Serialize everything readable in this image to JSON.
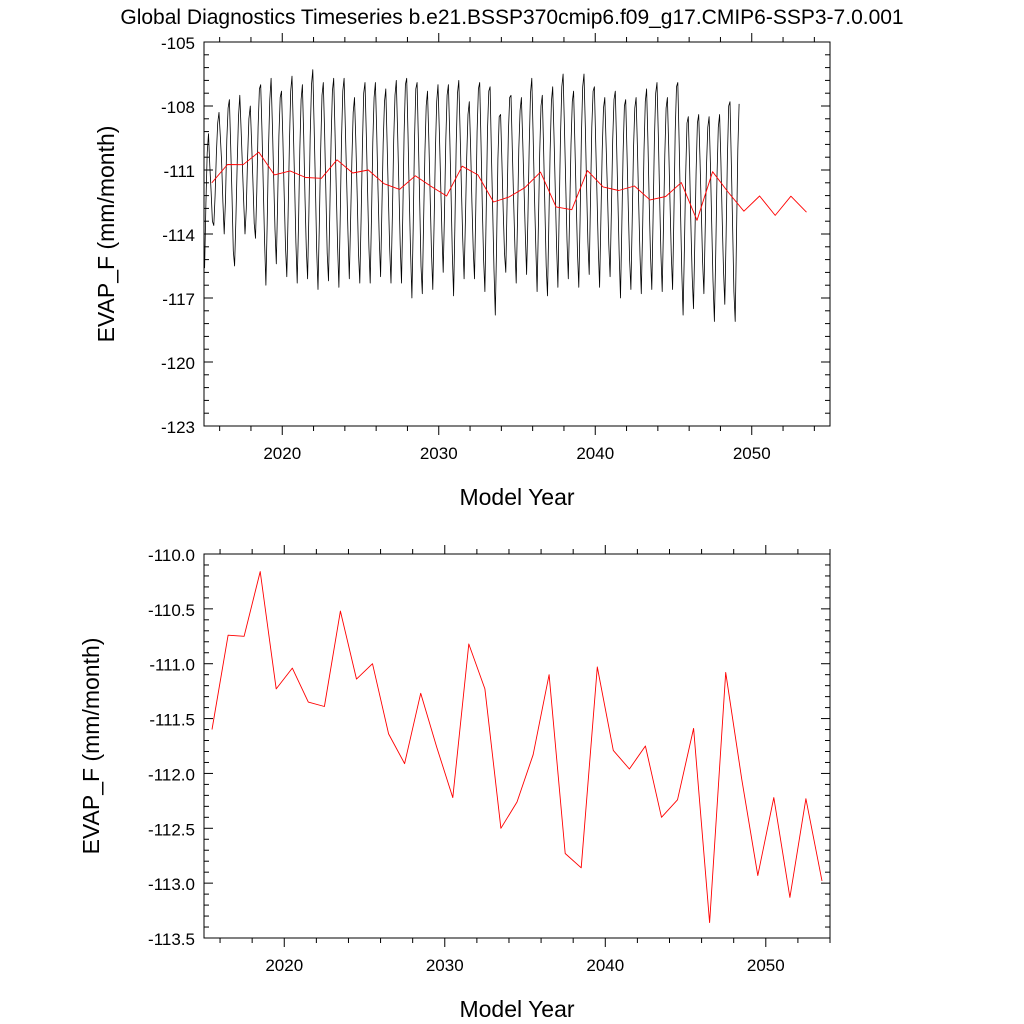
{
  "title": "Global Diagnostics Timeseries b.e21.BSSP370cmip6.f09_g17.CMIP6-SSP3-7.0.001",
  "colors": {
    "monthly": "#000000",
    "annual": "#ff0000",
    "frame": "#000000",
    "background": "#ffffff"
  },
  "chart_data": [
    {
      "type": "line",
      "xlabel": "Model Year",
      "ylabel": "EVAP_F (mm/month)",
      "xlim": [
        2015,
        2055
      ],
      "ylim": [
        -123,
        -105
      ],
      "x_ticks": [
        2020,
        2030,
        2040,
        2050
      ],
      "y_ticks": [
        -105,
        -108,
        -111,
        -114,
        -117,
        -120,
        -123
      ],
      "y_tick_labels": [
        "-105",
        "-108",
        "-111",
        "-114",
        "-117",
        "-120",
        "-123"
      ],
      "grid": false,
      "series": [
        {
          "color": "#000000",
          "x_start": 2015.04,
          "x_step": 0.0833,
          "values": [
            -115.6,
            -112.6,
            -110.2,
            -109.3,
            -110.8,
            -112.0,
            -113.4,
            -113.6,
            -112.2,
            -110.2,
            -108.8,
            -108.3,
            -109.4,
            -110.6,
            -112.5,
            -114.0,
            -112.4,
            -109.6,
            -108.1,
            -107.7,
            -109.9,
            -112.2,
            -114.8,
            -115.5,
            -113.3,
            -110.7,
            -108.5,
            -107.5,
            -109.1,
            -110.8,
            -112.5,
            -114.0,
            -112.8,
            -110.4,
            -108.6,
            -108.0,
            -109.7,
            -111.5,
            -113.5,
            -114.2,
            -112.0,
            -109.0,
            -107.2,
            -107.0,
            -109.2,
            -111.8,
            -114.4,
            -116.4,
            -113.5,
            -110.0,
            -107.7,
            -106.7,
            -108.9,
            -111.4,
            -113.8,
            -115.4,
            -112.6,
            -109.4,
            -107.6,
            -107.3,
            -109.4,
            -112.0,
            -114.6,
            -116.0,
            -113.1,
            -109.8,
            -107.3,
            -106.6,
            -109.0,
            -111.6,
            -114.4,
            -116.3,
            -113.6,
            -110.1,
            -107.7,
            -107.0,
            -109.4,
            -112.3,
            -114.7,
            -116.1,
            -113.0,
            -109.4,
            -107.0,
            -106.3,
            -108.9,
            -111.7,
            -114.8,
            -116.6,
            -113.6,
            -110.0,
            -107.5,
            -106.9,
            -109.2,
            -112.1,
            -114.9,
            -116.2,
            -113.0,
            -109.6,
            -107.3,
            -106.7,
            -109.2,
            -112.0,
            -114.6,
            -116.5,
            -113.3,
            -109.6,
            -107.3,
            -106.7,
            -109.1,
            -111.6,
            -114.0,
            -116.1,
            -113.4,
            -110.5,
            -108.3,
            -107.6,
            -109.6,
            -112.2,
            -114.9,
            -116.3,
            -113.3,
            -109.9,
            -107.4,
            -106.9,
            -109.3,
            -112.0,
            -114.6,
            -116.3,
            -113.2,
            -109.7,
            -107.6,
            -106.9,
            -109.2,
            -111.9,
            -114.3,
            -116.0,
            -112.8,
            -109.7,
            -107.8,
            -107.2,
            -109.7,
            -112.3,
            -114.7,
            -116.3,
            -113.1,
            -109.6,
            -107.5,
            -106.8,
            -109.2,
            -111.8,
            -114.5,
            -116.3,
            -113.1,
            -109.3,
            -107.0,
            -106.7,
            -109.3,
            -112.3,
            -114.9,
            -117.0,
            -113.7,
            -109.6,
            -107.2,
            -106.9,
            -109.6,
            -112.5,
            -115.5,
            -116.8,
            -113.4,
            -110.2,
            -108.0,
            -107.3,
            -109.7,
            -112.3,
            -114.9,
            -116.6,
            -113.5,
            -110.1,
            -107.8,
            -107.0,
            -109.1,
            -111.5,
            -113.9,
            -115.8,
            -113.0,
            -109.6,
            -107.5,
            -107.0,
            -109.3,
            -112.0,
            -114.9,
            -116.9,
            -113.6,
            -109.8,
            -107.4,
            -106.8,
            -109.2,
            -111.8,
            -114.2,
            -116.1,
            -113.4,
            -110.4,
            -108.4,
            -107.8,
            -109.9,
            -112.5,
            -114.7,
            -116.1,
            -112.8,
            -109.2,
            -107.2,
            -106.9,
            -109.7,
            -112.7,
            -115.2,
            -116.7,
            -113.0,
            -109.1,
            -107.3,
            -107.1,
            -110.2,
            -112.9,
            -115.7,
            -117.8,
            -114.5,
            -110.5,
            -108.5,
            -108.4,
            -110.6,
            -112.9,
            -114.9,
            -115.8,
            -112.5,
            -109.2,
            -107.6,
            -107.5,
            -110.0,
            -112.4,
            -114.6,
            -116.3,
            -113.4,
            -110.0,
            -108.2,
            -107.6,
            -109.6,
            -111.8,
            -114.0,
            -115.9,
            -113.3,
            -109.9,
            -107.4,
            -106.7,
            -109.3,
            -112.1,
            -114.6,
            -116.7,
            -113.6,
            -110.2,
            -108.0,
            -107.5,
            -110.0,
            -112.8,
            -115.5,
            -116.9,
            -113.6,
            -110.2,
            -107.8,
            -107.1,
            -109.4,
            -112.0,
            -114.6,
            -116.5,
            -113.0,
            -109.4,
            -107.1,
            -106.5,
            -108.9,
            -111.6,
            -114.3,
            -116.1,
            -113.2,
            -109.8,
            -107.8,
            -107.3,
            -109.8,
            -112.4,
            -114.9,
            -116.5,
            -113.3,
            -109.4,
            -107.1,
            -106.5,
            -108.9,
            -111.8,
            -114.4,
            -115.9,
            -112.4,
            -109.0,
            -107.3,
            -107.1,
            -109.7,
            -112.2,
            -114.7,
            -116.5,
            -113.3,
            -110.1,
            -108.1,
            -107.6,
            -109.8,
            -112.1,
            -114.5,
            -116.0,
            -112.9,
            -109.6,
            -107.7,
            -107.3,
            -109.8,
            -112.4,
            -115.0,
            -117.0,
            -113.7,
            -110.2,
            -108.0,
            -107.7,
            -110.2,
            -112.8,
            -115.2,
            -116.6,
            -113.4,
            -110.0,
            -108.1,
            -107.6,
            -109.9,
            -112.6,
            -115.0,
            -116.8,
            -113.6,
            -110.1,
            -107.8,
            -107.2,
            -109.6,
            -112.5,
            -115.0,
            -116.6,
            -113.2,
            -109.6,
            -107.4,
            -106.9,
            -109.3,
            -112.2,
            -114.9,
            -116.7,
            -113.6,
            -110.3,
            -108.1,
            -107.6,
            -109.9,
            -112.5,
            -115.0,
            -116.6,
            -113.1,
            -109.2,
            -107.1,
            -106.9,
            -109.8,
            -112.9,
            -115.8,
            -117.8,
            -114.7,
            -111.2,
            -108.8,
            -108.5,
            -110.8,
            -113.6,
            -116.0,
            -117.5,
            -114.4,
            -111.1,
            -108.8,
            -108.4,
            -110.5,
            -112.9,
            -115.3,
            -116.8,
            -113.8,
            -110.8,
            -109.0,
            -108.5,
            -110.7,
            -113.5,
            -116.2,
            -118.1,
            -115.0,
            -111.3,
            -109.0,
            -108.4,
            -110.6,
            -113.3,
            -115.7,
            -117.3,
            -114.1,
            -110.4,
            -108.0,
            -107.8,
            -110.6,
            -113.6,
            -116.7,
            -118.1,
            -114.1,
            -110.1,
            -107.9
          ]
        },
        {
          "color": "#ff0000",
          "x": [
            2015.5,
            2016.5,
            2017.5,
            2018.5,
            2019.5,
            2020.5,
            2021.5,
            2022.5,
            2023.5,
            2024.5,
            2025.5,
            2026.5,
            2027.5,
            2028.5,
            2029.5,
            2030.5,
            2031.5,
            2032.5,
            2033.5,
            2034.5,
            2035.5,
            2036.5,
            2037.5,
            2038.5,
            2039.5,
            2040.5,
            2041.5,
            2042.5,
            2043.5,
            2044.5,
            2045.5,
            2046.5,
            2047.5,
            2048.5,
            2049.5,
            2050.5,
            2051.5,
            2052.5,
            2053.5
          ],
          "values": [
            -111.6,
            -110.74,
            -110.75,
            -110.16,
            -111.23,
            -111.04,
            -111.35,
            -111.39,
            -110.52,
            -111.14,
            -111.0,
            -111.64,
            -111.91,
            -111.27,
            -111.76,
            -112.22,
            -110.82,
            -111.23,
            -112.5,
            -112.26,
            -111.83,
            -111.1,
            -112.73,
            -112.86,
            -111.03,
            -111.79,
            -111.96,
            -111.75,
            -112.4,
            -112.24,
            -111.59,
            -113.36,
            -111.08,
            -112.05,
            -112.93,
            -112.22,
            -113.13,
            -112.23,
            -112.98
          ]
        }
      ]
    },
    {
      "type": "line",
      "xlabel": "Model Year",
      "ylabel": "EVAP_F (mm/month)",
      "xlim": [
        2015,
        2054
      ],
      "ylim": [
        -113.5,
        -110.0
      ],
      "x_ticks": [
        2020,
        2030,
        2040,
        2050
      ],
      "y_ticks": [
        -110.0,
        -110.5,
        -111.0,
        -111.5,
        -112.0,
        -112.5,
        -113.0,
        -113.5
      ],
      "y_tick_labels": [
        "-110.0",
        "-110.5",
        "-111.0",
        "-111.5",
        "-112.0",
        "-112.5",
        "-113.0",
        "-113.5"
      ],
      "grid": false,
      "series": [
        {
          "color": "#ff0000",
          "x": [
            2015.5,
            2016.5,
            2017.5,
            2018.5,
            2019.5,
            2020.5,
            2021.5,
            2022.5,
            2023.5,
            2024.5,
            2025.5,
            2026.5,
            2027.5,
            2028.5,
            2029.5,
            2030.5,
            2031.5,
            2032.5,
            2033.5,
            2034.5,
            2035.5,
            2036.5,
            2037.5,
            2038.5,
            2039.5,
            2040.5,
            2041.5,
            2042.5,
            2043.5,
            2044.5,
            2045.5,
            2046.5,
            2047.5,
            2048.5,
            2049.5,
            2050.5,
            2051.5,
            2052.5,
            2053.5
          ],
          "values": [
            -111.6,
            -110.74,
            -110.75,
            -110.16,
            -111.23,
            -111.04,
            -111.35,
            -111.39,
            -110.52,
            -111.14,
            -111.0,
            -111.64,
            -111.91,
            -111.27,
            -111.76,
            -112.22,
            -110.82,
            -111.23,
            -112.5,
            -112.26,
            -111.83,
            -111.1,
            -112.73,
            -112.86,
            -111.03,
            -111.79,
            -111.96,
            -111.75,
            -112.4,
            -112.24,
            -111.59,
            -113.36,
            -111.08,
            -112.05,
            -112.93,
            -112.22,
            -113.13,
            -112.23,
            -112.98
          ]
        }
      ]
    }
  ]
}
